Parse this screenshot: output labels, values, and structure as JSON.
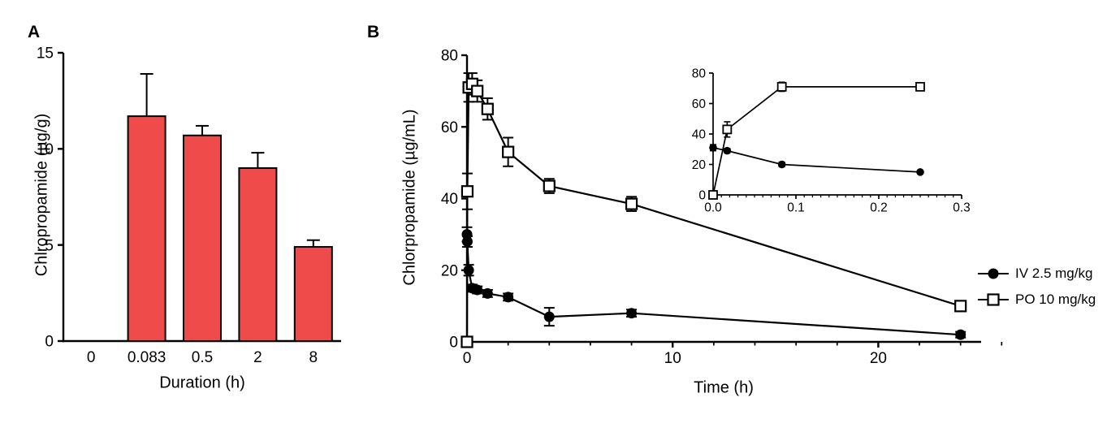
{
  "figure": {
    "background": "#ffffff",
    "foreground": "#000000"
  },
  "panel_a": {
    "label": "A",
    "ylabel": "Chlropropamide (µg/g)",
    "xlabel": "Duration (h)"
  },
  "panel_b": {
    "label": "B",
    "ylabel": "Chlorpropamide (µg/mL)",
    "xlabel": "Time (h)"
  },
  "legend": {
    "items": [
      {
        "label": "IV 2.5 mg/kg",
        "marker": "filled-circle"
      },
      {
        "label": "PO 10 mg/kg",
        "marker": "open-square"
      }
    ]
  },
  "chart_data": [
    {
      "panel": "A",
      "type": "bar",
      "title": "",
      "categories": [
        "0",
        "0.083",
        "0.5",
        "2",
        "8"
      ],
      "values": [
        0,
        11.7,
        10.7,
        9.0,
        4.9
      ],
      "errors": [
        0,
        2.2,
        0.5,
        0.8,
        0.35
      ],
      "xlabel": "Duration (h)",
      "ylabel": "Chlropropamide (µg/g)",
      "ylim": [
        0,
        15
      ],
      "yticks": [
        0,
        5,
        10,
        15
      ],
      "ytick_labels": [
        "0",
        "5",
        "10",
        "15"
      ],
      "bar_color": "#F04B4B",
      "bar_edge_color": "#000000",
      "error_color": "#000000"
    },
    {
      "panel": "B",
      "type": "line",
      "title": "",
      "xlabel": "Time (h)",
      "ylabel": "Chlorpropamide (µg/mL)",
      "xlim": [
        0,
        25
      ],
      "ylim": [
        0,
        80
      ],
      "xticks": [
        0,
        10,
        20
      ],
      "xtick_labels": [
        "0",
        "10",
        "20"
      ],
      "x_minor_step": 2,
      "yticks": [
        0,
        20,
        40,
        60,
        80
      ],
      "ytick_labels": [
        "0",
        "20",
        "40",
        "60",
        "80"
      ],
      "x": [
        0,
        0.017,
        0.083,
        0.25,
        0.5,
        1,
        2,
        4,
        8,
        24
      ],
      "series": [
        {
          "name": "IV 2.5 mg/kg",
          "marker": "filled-circle",
          "color": "#000000",
          "y": [
            30,
            28,
            20,
            15,
            14.5,
            13.5,
            12.5,
            7,
            8,
            2
          ],
          "err": [
            2,
            1.5,
            1.5,
            1,
            1,
            1,
            1,
            2.5,
            1,
            0.8
          ]
        },
        {
          "name": "PO 10 mg/kg",
          "marker": "open-square",
          "color": "#000000",
          "y": [
            0,
            42,
            71,
            72,
            70,
            65,
            53,
            43.5,
            38.5,
            10
          ],
          "err": [
            0,
            5,
            4,
            3,
            3,
            3,
            4,
            2,
            2,
            1.2
          ]
        }
      ],
      "legend_position": "right-outside"
    },
    {
      "panel": "B-inset",
      "type": "line",
      "title": "",
      "xlabel": "",
      "ylabel": "",
      "xlim": [
        0,
        0.3
      ],
      "ylim": [
        0,
        80
      ],
      "xticks": [
        0,
        0.1,
        0.2,
        0.3
      ],
      "xtick_labels": [
        "0.0",
        "0.1",
        "0.2",
        "0.3"
      ],
      "x_minor_step": 0.01,
      "yticks": [
        0,
        20,
        40,
        60,
        80
      ],
      "ytick_labels": [
        "0",
        "20",
        "40",
        "60",
        "80"
      ],
      "x": [
        0,
        0.017,
        0.083,
        0.25
      ],
      "series": [
        {
          "name": "IV 2.5 mg/kg",
          "marker": "filled-circle",
          "color": "#000000",
          "y": [
            31,
            29,
            20,
            15
          ],
          "err": [
            2,
            1.5,
            1.5,
            1
          ]
        },
        {
          "name": "PO 10 mg/kg",
          "marker": "open-square",
          "color": "#000000",
          "y": [
            0,
            43,
            71,
            71
          ],
          "err": [
            0,
            5,
            3,
            2
          ]
        }
      ]
    }
  ]
}
